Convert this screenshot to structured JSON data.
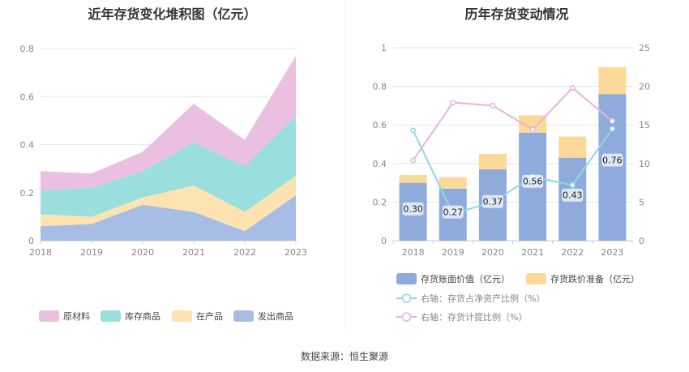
{
  "source_label": "数据来源：恒生聚源",
  "colors": {
    "raw_materials": "#ebbfdf",
    "inventory_goods": "#9adede",
    "work_in_progress": "#fde3b1",
    "shipped_goods": "#a8bde6",
    "book_value_bar": "#8fabdc",
    "impairment_bar": "#fdd999",
    "line_share": "#8fd8dd",
    "line_ratio": "#e4b5dc"
  },
  "chart_data": [
    {
      "type": "area",
      "title": "近年存货变化堆积图（亿元）",
      "x": [
        "2018",
        "2019",
        "2020",
        "2021",
        "2022",
        "2023"
      ],
      "ylim": [
        0,
        0.8
      ],
      "yticks": [
        "0",
        "0.2",
        "0.4",
        "0.6",
        "0.8"
      ],
      "grid": true,
      "legend_position": "bottom",
      "series": [
        {
          "name": "发出商品",
          "values": [
            0.06,
            0.07,
            0.15,
            0.12,
            0.04,
            0.19
          ]
        },
        {
          "name": "在产品",
          "values": [
            0.05,
            0.03,
            0.03,
            0.11,
            0.08,
            0.08
          ]
        },
        {
          "name": "库存商品",
          "values": [
            0.1,
            0.12,
            0.11,
            0.18,
            0.19,
            0.25
          ]
        },
        {
          "name": "原材料",
          "values": [
            0.08,
            0.06,
            0.08,
            0.16,
            0.11,
            0.25
          ]
        }
      ],
      "legend_order": [
        "原材料",
        "库存商品",
        "在产品",
        "发出商品"
      ]
    },
    {
      "type": "bar",
      "title": "历年存货变动情况",
      "categories": [
        "2018",
        "2019",
        "2020",
        "2021",
        "2022",
        "2023"
      ],
      "ylim_left": [
        0,
        1
      ],
      "yticks_left": [
        "0",
        "0.2",
        "0.4",
        "0.6",
        "0.8",
        "1"
      ],
      "ylim_right": [
        0,
        25
      ],
      "yticks_right": [
        "0",
        "5",
        "10",
        "15",
        "20",
        "25"
      ],
      "grid": true,
      "legend_position": "bottom",
      "bar_series": [
        {
          "name": "存货账面价值（亿元）",
          "values": [
            0.3,
            0.27,
            0.37,
            0.56,
            0.43,
            0.76
          ],
          "labels": [
            "0.30",
            "0.27",
            "0.37",
            "0.56",
            "0.43",
            "0.76"
          ]
        },
        {
          "name": "存货跌价准备（亿元）",
          "values": [
            0.04,
            0.06,
            0.08,
            0.09,
            0.11,
            0.14
          ]
        }
      ],
      "line_series": [
        {
          "name": "右轴：存货占净资产比例（%）",
          "values": [
            14.3,
            3.5,
            5.0,
            8.3,
            7.2,
            14.5
          ]
        },
        {
          "name": "右轴：存货计提比例（%）",
          "values": [
            10.4,
            17.9,
            17.5,
            14.4,
            19.8,
            15.5
          ]
        }
      ]
    }
  ]
}
